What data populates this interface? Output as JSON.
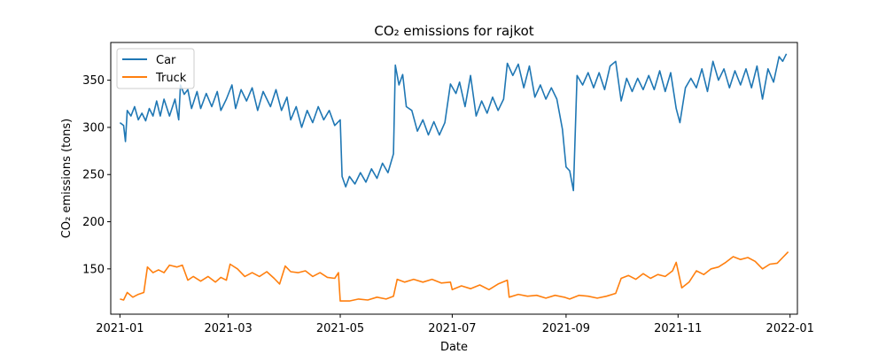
{
  "chart_data": {
    "type": "line",
    "title": "CO₂ emissions for rajkot",
    "xlabel": "Date",
    "ylabel": "CO₂ emissions (tons)",
    "x_range": [
      "2020-12-27",
      "2022-01-05"
    ],
    "ylim": [
      102,
      390
    ],
    "grid": false,
    "legend_position": "top-left",
    "x_ticks": [
      {
        "date": "2021-01-01",
        "label": "2021-01"
      },
      {
        "date": "2021-03-01",
        "label": "2021-03"
      },
      {
        "date": "2021-05-01",
        "label": "2021-05"
      },
      {
        "date": "2021-07-01",
        "label": "2021-07"
      },
      {
        "date": "2021-09-01",
        "label": "2021-09"
      },
      {
        "date": "2021-11-01",
        "label": "2021-11"
      },
      {
        "date": "2022-01-01",
        "label": "2022-01"
      }
    ],
    "y_ticks": [
      150,
      200,
      250,
      300,
      350
    ],
    "series": [
      {
        "name": "Car",
        "color": "#1f77b4",
        "points": [
          [
            "2021-01-01",
            305
          ],
          [
            "2021-01-03",
            302
          ],
          [
            "2021-01-04",
            285
          ],
          [
            "2021-01-05",
            318
          ],
          [
            "2021-01-07",
            312
          ],
          [
            "2021-01-09",
            322
          ],
          [
            "2021-01-11",
            308
          ],
          [
            "2021-01-13",
            315
          ],
          [
            "2021-01-15",
            307
          ],
          [
            "2021-01-17",
            320
          ],
          [
            "2021-01-19",
            312
          ],
          [
            "2021-01-21",
            328
          ],
          [
            "2021-01-23",
            312
          ],
          [
            "2021-01-25",
            330
          ],
          [
            "2021-01-28",
            312
          ],
          [
            "2021-01-31",
            330
          ],
          [
            "2021-02-02",
            308
          ],
          [
            "2021-02-03",
            345
          ],
          [
            "2021-02-05",
            335
          ],
          [
            "2021-02-07",
            340
          ],
          [
            "2021-02-09",
            320
          ],
          [
            "2021-02-12",
            338
          ],
          [
            "2021-02-14",
            320
          ],
          [
            "2021-02-17",
            336
          ],
          [
            "2021-02-20",
            322
          ],
          [
            "2021-02-23",
            338
          ],
          [
            "2021-02-25",
            318
          ],
          [
            "2021-02-28",
            330
          ],
          [
            "2021-03-03",
            345
          ],
          [
            "2021-03-05",
            320
          ],
          [
            "2021-03-08",
            340
          ],
          [
            "2021-03-11",
            328
          ],
          [
            "2021-03-14",
            342
          ],
          [
            "2021-03-17",
            318
          ],
          [
            "2021-03-20",
            338
          ],
          [
            "2021-03-24",
            322
          ],
          [
            "2021-03-27",
            340
          ],
          [
            "2021-03-30",
            318
          ],
          [
            "2021-04-02",
            332
          ],
          [
            "2021-04-04",
            308
          ],
          [
            "2021-04-07",
            322
          ],
          [
            "2021-04-10",
            300
          ],
          [
            "2021-04-13",
            318
          ],
          [
            "2021-04-16",
            305
          ],
          [
            "2021-04-19",
            322
          ],
          [
            "2021-04-22",
            308
          ],
          [
            "2021-04-25",
            318
          ],
          [
            "2021-04-28",
            302
          ],
          [
            "2021-05-01",
            308
          ],
          [
            "2021-05-02",
            248
          ],
          [
            "2021-05-04",
            237
          ],
          [
            "2021-05-06",
            248
          ],
          [
            "2021-05-09",
            240
          ],
          [
            "2021-05-12",
            252
          ],
          [
            "2021-05-15",
            242
          ],
          [
            "2021-05-18",
            256
          ],
          [
            "2021-05-21",
            246
          ],
          [
            "2021-05-24",
            262
          ],
          [
            "2021-05-27",
            252
          ],
          [
            "2021-05-30",
            272
          ],
          [
            "2021-05-31",
            366
          ],
          [
            "2021-06-02",
            345
          ],
          [
            "2021-06-04",
            356
          ],
          [
            "2021-06-06",
            322
          ],
          [
            "2021-06-09",
            318
          ],
          [
            "2021-06-12",
            296
          ],
          [
            "2021-06-15",
            308
          ],
          [
            "2021-06-18",
            292
          ],
          [
            "2021-06-21",
            306
          ],
          [
            "2021-06-24",
            292
          ],
          [
            "2021-06-27",
            305
          ],
          [
            "2021-06-30",
            346
          ],
          [
            "2021-07-03",
            336
          ],
          [
            "2021-07-05",
            348
          ],
          [
            "2021-07-08",
            322
          ],
          [
            "2021-07-11",
            355
          ],
          [
            "2021-07-14",
            312
          ],
          [
            "2021-07-17",
            328
          ],
          [
            "2021-07-20",
            315
          ],
          [
            "2021-07-23",
            332
          ],
          [
            "2021-07-26",
            318
          ],
          [
            "2021-07-29",
            330
          ],
          [
            "2021-07-31",
            368
          ],
          [
            "2021-08-03",
            355
          ],
          [
            "2021-08-06",
            367
          ],
          [
            "2021-08-09",
            342
          ],
          [
            "2021-08-12",
            365
          ],
          [
            "2021-08-15",
            332
          ],
          [
            "2021-08-18",
            345
          ],
          [
            "2021-08-21",
            330
          ],
          [
            "2021-08-24",
            342
          ],
          [
            "2021-08-27",
            330
          ],
          [
            "2021-08-30",
            298
          ],
          [
            "2021-09-01",
            258
          ],
          [
            "2021-09-03",
            254
          ],
          [
            "2021-09-05",
            233
          ],
          [
            "2021-09-07",
            355
          ],
          [
            "2021-09-10",
            345
          ],
          [
            "2021-09-13",
            358
          ],
          [
            "2021-09-16",
            342
          ],
          [
            "2021-09-19",
            358
          ],
          [
            "2021-09-22",
            340
          ],
          [
            "2021-09-25",
            365
          ],
          [
            "2021-09-28",
            370
          ],
          [
            "2021-10-01",
            328
          ],
          [
            "2021-10-04",
            352
          ],
          [
            "2021-10-07",
            338
          ],
          [
            "2021-10-10",
            352
          ],
          [
            "2021-10-13",
            340
          ],
          [
            "2021-10-16",
            355
          ],
          [
            "2021-10-19",
            340
          ],
          [
            "2021-10-22",
            360
          ],
          [
            "2021-10-25",
            338
          ],
          [
            "2021-10-28",
            358
          ],
          [
            "2021-10-31",
            320
          ],
          [
            "2021-11-02",
            305
          ],
          [
            "2021-11-05",
            342
          ],
          [
            "2021-11-08",
            352
          ],
          [
            "2021-11-11",
            342
          ],
          [
            "2021-11-14",
            362
          ],
          [
            "2021-11-17",
            338
          ],
          [
            "2021-11-20",
            370
          ],
          [
            "2021-11-23",
            350
          ],
          [
            "2021-11-26",
            362
          ],
          [
            "2021-11-29",
            342
          ],
          [
            "2021-12-02",
            360
          ],
          [
            "2021-12-05",
            345
          ],
          [
            "2021-12-08",
            362
          ],
          [
            "2021-12-11",
            342
          ],
          [
            "2021-12-14",
            365
          ],
          [
            "2021-12-17",
            330
          ],
          [
            "2021-12-20",
            362
          ],
          [
            "2021-12-23",
            348
          ],
          [
            "2021-12-26",
            375
          ],
          [
            "2021-12-28",
            370
          ],
          [
            "2021-12-30",
            378
          ]
        ]
      },
      {
        "name": "Truck",
        "color": "#ff7f0e",
        "points": [
          [
            "2021-01-01",
            118
          ],
          [
            "2021-01-03",
            117
          ],
          [
            "2021-01-05",
            125
          ],
          [
            "2021-01-08",
            120
          ],
          [
            "2021-01-11",
            123
          ],
          [
            "2021-01-14",
            125
          ],
          [
            "2021-01-16",
            152
          ],
          [
            "2021-01-19",
            146
          ],
          [
            "2021-01-22",
            149
          ],
          [
            "2021-01-25",
            146
          ],
          [
            "2021-01-28",
            154
          ],
          [
            "2021-02-01",
            152
          ],
          [
            "2021-02-04",
            154
          ],
          [
            "2021-02-07",
            138
          ],
          [
            "2021-02-10",
            142
          ],
          [
            "2021-02-14",
            137
          ],
          [
            "2021-02-18",
            142
          ],
          [
            "2021-02-22",
            136
          ],
          [
            "2021-02-25",
            141
          ],
          [
            "2021-02-28",
            138
          ],
          [
            "2021-03-02",
            155
          ],
          [
            "2021-03-06",
            150
          ],
          [
            "2021-03-10",
            142
          ],
          [
            "2021-03-14",
            146
          ],
          [
            "2021-03-18",
            142
          ],
          [
            "2021-03-22",
            147
          ],
          [
            "2021-03-26",
            140
          ],
          [
            "2021-03-29",
            134
          ],
          [
            "2021-04-01",
            153
          ],
          [
            "2021-04-04",
            147
          ],
          [
            "2021-04-08",
            146
          ],
          [
            "2021-04-12",
            148
          ],
          [
            "2021-04-16",
            142
          ],
          [
            "2021-04-20",
            146
          ],
          [
            "2021-04-24",
            141
          ],
          [
            "2021-04-28",
            140
          ],
          [
            "2021-04-30",
            146
          ],
          [
            "2021-05-01",
            116
          ],
          [
            "2021-05-06",
            116
          ],
          [
            "2021-05-11",
            118
          ],
          [
            "2021-05-16",
            117
          ],
          [
            "2021-05-21",
            120
          ],
          [
            "2021-05-26",
            118
          ],
          [
            "2021-05-30",
            121
          ],
          [
            "2021-06-01",
            139
          ],
          [
            "2021-06-05",
            136
          ],
          [
            "2021-06-10",
            139
          ],
          [
            "2021-06-15",
            136
          ],
          [
            "2021-06-20",
            139
          ],
          [
            "2021-06-25",
            135
          ],
          [
            "2021-06-30",
            136
          ],
          [
            "2021-07-01",
            128
          ],
          [
            "2021-07-06",
            132
          ],
          [
            "2021-07-11",
            129
          ],
          [
            "2021-07-16",
            133
          ],
          [
            "2021-07-21",
            128
          ],
          [
            "2021-07-26",
            134
          ],
          [
            "2021-07-31",
            138
          ],
          [
            "2021-08-01",
            120
          ],
          [
            "2021-08-06",
            123
          ],
          [
            "2021-08-11",
            121
          ],
          [
            "2021-08-16",
            122
          ],
          [
            "2021-08-21",
            119
          ],
          [
            "2021-08-26",
            122
          ],
          [
            "2021-08-31",
            120
          ],
          [
            "2021-09-03",
            118
          ],
          [
            "2021-09-08",
            122
          ],
          [
            "2021-09-13",
            121
          ],
          [
            "2021-09-18",
            119
          ],
          [
            "2021-09-23",
            121
          ],
          [
            "2021-09-28",
            124
          ],
          [
            "2021-10-01",
            140
          ],
          [
            "2021-10-05",
            143
          ],
          [
            "2021-10-09",
            139
          ],
          [
            "2021-10-13",
            145
          ],
          [
            "2021-10-17",
            140
          ],
          [
            "2021-10-21",
            144
          ],
          [
            "2021-10-25",
            142
          ],
          [
            "2021-10-29",
            148
          ],
          [
            "2021-10-31",
            157
          ],
          [
            "2021-11-03",
            130
          ],
          [
            "2021-11-07",
            136
          ],
          [
            "2021-11-11",
            148
          ],
          [
            "2021-11-15",
            144
          ],
          [
            "2021-11-19",
            150
          ],
          [
            "2021-11-23",
            152
          ],
          [
            "2021-11-27",
            157
          ],
          [
            "2021-12-01",
            163
          ],
          [
            "2021-12-05",
            160
          ],
          [
            "2021-12-09",
            162
          ],
          [
            "2021-12-13",
            158
          ],
          [
            "2021-12-17",
            150
          ],
          [
            "2021-12-21",
            155
          ],
          [
            "2021-12-25",
            156
          ],
          [
            "2021-12-28",
            162
          ],
          [
            "2021-12-31",
            168
          ]
        ]
      }
    ]
  }
}
